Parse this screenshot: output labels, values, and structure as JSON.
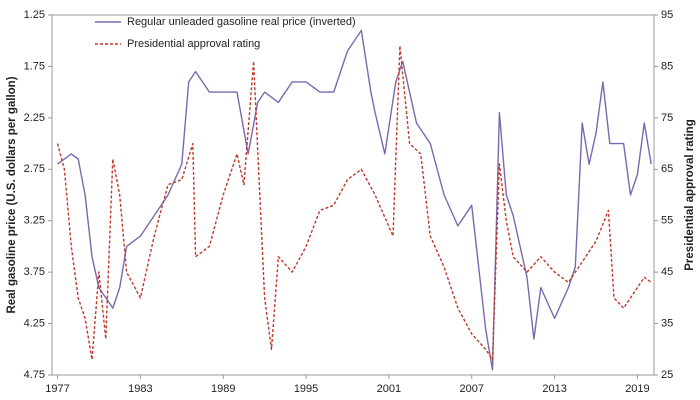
{
  "chart_data": {
    "type": "line",
    "y_label": "Real gasoline price (U.S. dollars per gallon)",
    "y2_label": "Presidential approval rating",
    "xlim": [
      1976.6,
      2020.2
    ],
    "xticks": [
      1977,
      1983,
      1989,
      1995,
      2001,
      2007,
      2013,
      2019
    ],
    "ylim": [
      1.25,
      4.75
    ],
    "yticks": [
      1.25,
      1.75,
      2.25,
      2.75,
      3.25,
      3.75,
      4.25,
      4.75
    ],
    "y_inverted": true,
    "y2lim": [
      25,
      95
    ],
    "y2ticks": [
      25,
      35,
      45,
      55,
      65,
      75,
      85,
      95
    ],
    "legend": "upper left",
    "series": [
      {
        "name": "Regular unleaded gasoline real price (inverted)",
        "color": "#7b68b0",
        "dash": false,
        "axis": "y",
        "x": [
          1977,
          1978,
          1978.5,
          1979,
          1979.5,
          1980,
          1981,
          1981.5,
          1982,
          1983,
          1984,
          1985,
          1986,
          1986.5,
          1987,
          1988,
          1989,
          1990,
          1990.8,
          1991.5,
          1992,
          1993,
          1994,
          1995,
          1996,
          1997,
          1998,
          1999,
          1999.7,
          2000,
          2000.7,
          2001.5,
          2002,
          2003,
          2004,
          2005,
          2006,
          2007,
          2008,
          2008.5,
          2009,
          2009.5,
          2010,
          2011,
          2011.5,
          2012,
          2013,
          2014,
          2014.5,
          2015,
          2015.5,
          2016,
          2016.5,
          2017,
          2018,
          2018.5,
          2019,
          2019.5,
          2020
        ],
        "values": [
          2.7,
          2.6,
          2.65,
          3.0,
          3.6,
          3.9,
          4.1,
          3.9,
          3.5,
          3.4,
          3.2,
          3.0,
          2.7,
          1.9,
          1.8,
          2.0,
          2.0,
          2.0,
          2.6,
          2.1,
          2.0,
          2.1,
          1.9,
          1.9,
          2.0,
          2.0,
          1.6,
          1.4,
          2.0,
          2.2,
          2.6,
          1.9,
          1.7,
          2.3,
          2.5,
          3.0,
          3.3,
          3.1,
          4.3,
          4.7,
          2.2,
          3.0,
          3.2,
          3.8,
          4.4,
          3.9,
          4.2,
          3.9,
          3.7,
          2.3,
          2.7,
          2.4,
          1.9,
          2.5,
          2.5,
          3.0,
          2.8,
          2.3,
          2.7
        ]
      },
      {
        "name": "Presidential approval rating",
        "color": "#c0392b",
        "dash": true,
        "axis": "y2",
        "x": [
          1977,
          1977.5,
          1978,
          1978.5,
          1979,
          1979.5,
          1980,
          1980.5,
          1981,
          1981.5,
          1982,
          1983,
          1984,
          1985,
          1986,
          1986.8,
          1987,
          1988,
          1989,
          1990,
          1990.5,
          1991.2,
          1992,
          1992.5,
          1993,
          1994,
          1995,
          1996,
          1997,
          1998,
          1999,
          2000,
          2001.3,
          2001.8,
          2002.5,
          2003.3,
          2004,
          2005,
          2006,
          2007,
          2008,
          2008.5,
          2009,
          2009.5,
          2010,
          2011,
          2012,
          2013,
          2014,
          2015,
          2016,
          2016.9,
          2017.3,
          2018,
          2019,
          2019.5,
          2020
        ],
        "values": [
          70,
          65,
          50,
          40,
          36,
          28,
          45,
          32,
          67,
          60,
          45,
          40,
          52,
          62,
          63,
          70,
          48,
          50,
          60,
          68,
          62,
          86,
          40,
          30,
          48,
          45,
          50,
          57,
          58,
          63,
          65,
          60,
          52,
          89,
          70,
          68,
          52,
          46,
          38,
          33,
          30,
          28,
          66,
          55,
          48,
          45,
          48,
          45,
          43,
          47,
          51,
          57,
          40,
          38,
          42,
          44,
          43
        ]
      }
    ]
  }
}
